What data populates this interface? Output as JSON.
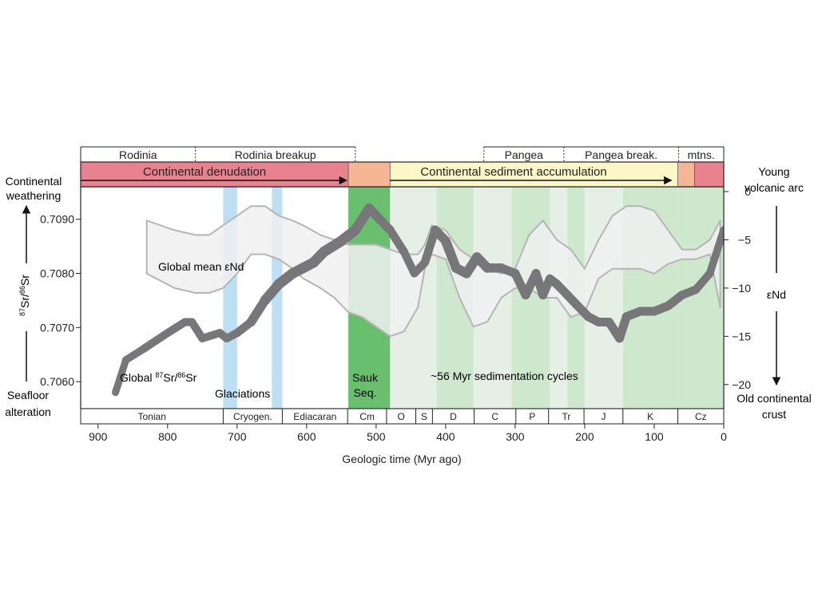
{
  "chart_data": {
    "type": "line",
    "xlabel": "Geologic time (Myr ago)",
    "x_ticks": [
      900,
      800,
      700,
      600,
      500,
      400,
      300,
      200,
      100,
      0
    ],
    "xlim": [
      925,
      0
    ],
    "left_axis": {
      "label_lines": [
        "87Sr/86Sr"
      ],
      "ylim": [
        0.7055,
        0.7096
      ],
      "ticks": [
        {
          "value": 0.709,
          "label": "0.7090"
        },
        {
          "value": 0.708,
          "label": "0.7080"
        },
        {
          "value": 0.707,
          "label": "0.7070"
        },
        {
          "value": 0.706,
          "label": "0.7060"
        }
      ],
      "top_label": [
        "Continental",
        "weathering"
      ],
      "bottom_label": [
        "Seafloor",
        "alteration"
      ]
    },
    "right_axis": {
      "label": "εNd",
      "ylim": [
        -22.5,
        0.5
      ],
      "ticks": [
        {
          "value": 0,
          "label": "0"
        },
        {
          "value": -5,
          "label": "−5"
        },
        {
          "value": -10,
          "label": "−10"
        },
        {
          "value": -15,
          "label": "−15"
        },
        {
          "value": -20,
          "label": "−20"
        }
      ],
      "top_label": [
        "Young",
        "volcanic arc"
      ],
      "bottom_label": [
        "Old continental",
        "crust"
      ]
    },
    "series": [
      {
        "name": "Global 87Sr/86Sr",
        "axis": "left",
        "x": [
          875,
          860,
          835,
          800,
          775,
          765,
          750,
          725,
          715,
          700,
          680,
          660,
          640,
          620,
          605,
          590,
          575,
          550,
          530,
          510,
          495,
          480,
          460,
          445,
          430,
          415,
          400,
          385,
          370,
          355,
          340,
          320,
          300,
          285,
          270,
          260,
          250,
          240,
          225,
          210,
          195,
          180,
          165,
          150,
          140,
          120,
          100,
          80,
          60,
          40,
          20,
          0
        ],
        "y": [
          0.7058,
          0.7064,
          0.7066,
          0.7069,
          0.7071,
          0.7071,
          0.7068,
          0.7069,
          0.7068,
          0.7069,
          0.7071,
          0.7075,
          0.7078,
          0.708,
          0.7081,
          0.7082,
          0.7084,
          0.7086,
          0.7088,
          0.7092,
          0.709,
          0.7088,
          0.7084,
          0.708,
          0.7082,
          0.7088,
          0.7086,
          0.7081,
          0.708,
          0.7083,
          0.7081,
          0.7081,
          0.708,
          0.7076,
          0.708,
          0.7076,
          0.7079,
          0.7078,
          0.7076,
          0.7074,
          0.7072,
          0.7071,
          0.7071,
          0.7068,
          0.7072,
          0.7073,
          0.7073,
          0.7074,
          0.7076,
          0.7077,
          0.708,
          0.7088
        ],
        "width": [
          9,
          9,
          10,
          10,
          10,
          10,
          10,
          10,
          10,
          10,
          11,
          12,
          13,
          13,
          13,
          13,
          13,
          13,
          13,
          12,
          11,
          11,
          10,
          10,
          10,
          11,
          12,
          12,
          12,
          12,
          12,
          11,
          11,
          11,
          11,
          11,
          11,
          11,
          11,
          11,
          11,
          11,
          11,
          11,
          11,
          11,
          11,
          11,
          11,
          10,
          10,
          9
        ],
        "color": "#777779"
      }
    ],
    "envelope": {
      "name": "Global mean εNd",
      "axis": "right",
      "upper": {
        "x": [
          830,
          790,
          760,
          740,
          720,
          700,
          680,
          660,
          640,
          620,
          605,
          580,
          560,
          540,
          520,
          500,
          480,
          460,
          440,
          430,
          420,
          400,
          380,
          360,
          340,
          320,
          300,
          280,
          260,
          240,
          220,
          200,
          180,
          160,
          140,
          120,
          100,
          80,
          60,
          40,
          20,
          5
        ],
        "y": [
          -3,
          -4,
          -4.5,
          -4.5,
          -3.5,
          -2.5,
          -1.5,
          -1.5,
          -2.5,
          -3,
          -3.5,
          -4.5,
          -5,
          -5.5,
          -5.5,
          -5.5,
          -6,
          -6.5,
          -6.5,
          -5.5,
          -3.5,
          -4,
          -6,
          -7,
          -8,
          -8.5,
          -8,
          -4.5,
          -3,
          -5,
          -6,
          -8,
          -5,
          -2.5,
          -1.5,
          -1.5,
          -2,
          -4,
          -6,
          -6,
          -5,
          -3
        ]
      },
      "lower": {
        "x": [
          830,
          790,
          760,
          740,
          720,
          700,
          680,
          660,
          640,
          620,
          605,
          580,
          560,
          540,
          520,
          500,
          480,
          460,
          440,
          430,
          420,
          400,
          380,
          360,
          340,
          320,
          300,
          280,
          260,
          240,
          220,
          200,
          180,
          160,
          140,
          120,
          100,
          80,
          60,
          40,
          20,
          5
        ],
        "y": [
          -8.5,
          -10,
          -10.5,
          -10.5,
          -10,
          -8.5,
          -6.5,
          -6.5,
          -7,
          -8,
          -9,
          -10,
          -11,
          -12.5,
          -13,
          -14,
          -15,
          -14.5,
          -12,
          -8,
          -6.5,
          -7,
          -11,
          -14,
          -13.5,
          -11,
          -10,
          -10,
          -11,
          -11,
          -13,
          -12.5,
          -9,
          -8,
          -8,
          -8,
          -8.5,
          -7.5,
          -7,
          -7,
          -6.5,
          -12
        ]
      },
      "color": "#f0f0f1",
      "stroke": "#b5b5b5"
    },
    "bands": {
      "glaciations": [
        [
          720,
          700
        ],
        [
          650,
          635
        ]
      ],
      "sauk": [
        540,
        480
      ],
      "light_bands": [
        [
          480,
          413
        ],
        [
          413,
          360
        ],
        [
          360,
          305
        ],
        [
          305,
          250
        ],
        [
          250,
          225
        ],
        [
          225,
          200
        ],
        [
          200,
          145
        ],
        [
          145,
          66
        ],
        [
          66,
          0
        ]
      ],
      "light_band_colors": [
        "#e6efe6",
        "#cde8cd",
        "#e6efe6",
        "#cde8cd",
        "#e6efe6",
        "#cde8cd",
        "#e6efe6",
        "#cde8cd",
        "#cde8cd"
      ],
      "glaciation_color": "#bcdff3",
      "sauk_color": "#6abf6e"
    },
    "periods": [
      {
        "label": "Tonian",
        "from": 925,
        "to": 720
      },
      {
        "label": "Cryogen.",
        "from": 720,
        "to": 635
      },
      {
        "label": "Ediacaran",
        "from": 635,
        "to": 541
      },
      {
        "label": "Cm",
        "from": 541,
        "to": 485
      },
      {
        "label": "O",
        "from": 485,
        "to": 443
      },
      {
        "label": "S",
        "from": 443,
        "to": 419
      },
      {
        "label": "D",
        "from": 419,
        "to": 359
      },
      {
        "label": "C",
        "from": 359,
        "to": 299
      },
      {
        "label": "P",
        "from": 299,
        "to": 252
      },
      {
        "label": "Tr",
        "from": 252,
        "to": 201
      },
      {
        "label": "J",
        "from": 201,
        "to": 145
      },
      {
        "label": "K",
        "from": 145,
        "to": 66
      },
      {
        "label": "Cz",
        "from": 66,
        "to": 0
      }
    ],
    "tectonics": [
      {
        "label": "Rodinia",
        "from": 925,
        "to": 760
      },
      {
        "label": "Rodinia breakup",
        "from": 760,
        "to": 530
      },
      {
        "label": "Pangea",
        "from": 345,
        "to": 230
      },
      {
        "label": "Pangea break.",
        "from": 230,
        "to": 65
      },
      {
        "label": "mtns.",
        "from": 65,
        "to": 0
      }
    ],
    "tectonic_dividers": [
      760,
      530,
      345,
      230,
      65
    ],
    "regimes": [
      {
        "label": "Continental denudation",
        "from": 925,
        "to": 540,
        "color": "#e8828f"
      },
      {
        "label": "",
        "from": 540,
        "to": 480,
        "color": "#f4b694"
      },
      {
        "label": "Continental sediment accumulation",
        "from": 480,
        "to": 66,
        "color": "#fdf7c8"
      },
      {
        "label": "",
        "from": 66,
        "to": 42,
        "color": "#f4b694"
      },
      {
        "label": "",
        "from": 42,
        "to": 0,
        "color": "#e8828f"
      }
    ],
    "annotations": {
      "glaciations": "Glaciations",
      "sauk_lines": [
        "Sauk",
        "Seq."
      ],
      "cycles": "~56 Myr sedimentation cycles",
      "sr_curve": "Global 87Sr/86Sr",
      "end_label": "Global mean εNd"
    }
  }
}
